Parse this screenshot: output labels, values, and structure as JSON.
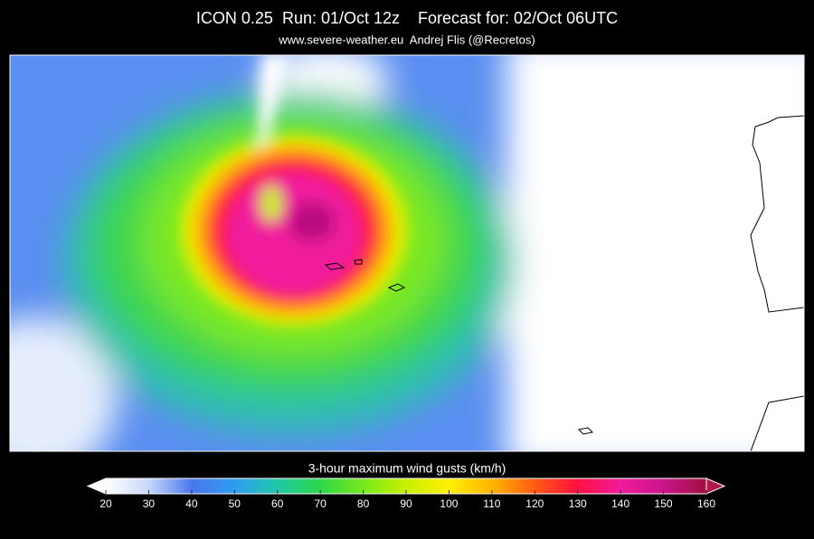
{
  "header": {
    "title": "ICON 0.25  Run: 01/Oct 12z    Forecast for: 02/Oct 06UTC",
    "subtitle": "www.severe-weather.eu  Andrej Flis (@Recretos)"
  },
  "colorbar": {
    "label": "3-hour maximum wind gusts (km/h)",
    "ticks": [
      20,
      30,
      40,
      50,
      60,
      70,
      80,
      90,
      100,
      110,
      120,
      130,
      140,
      150,
      160
    ],
    "colors": [
      "#ffffff",
      "#c8d8fa",
      "#4a78ee",
      "#2f9cf0",
      "#1fc8a8",
      "#2ed84a",
      "#78e81c",
      "#c8f000",
      "#fff000",
      "#ffb400",
      "#ff5a14",
      "#ff1040",
      "#f01c9c",
      "#c8148c",
      "#a0103c"
    ],
    "under_color": "#ffffff",
    "over_color": "#b0184a"
  }
}
